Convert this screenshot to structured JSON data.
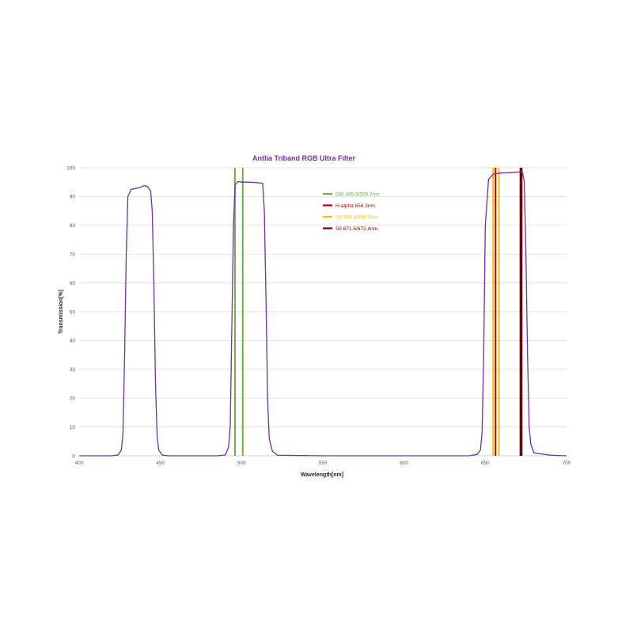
{
  "chart_data": {
    "type": "line",
    "title": "Antlia Triband RGB Ultra Filter",
    "xlabel": "Wavelength[nm]",
    "ylabel": "Transmission[%]",
    "xlim": [
      400,
      700
    ],
    "ylim": [
      0,
      100
    ],
    "x_ticks": [
      400,
      450,
      500,
      550,
      600,
      650,
      700
    ],
    "y_ticks": [
      0,
      10,
      20,
      30,
      40,
      50,
      60,
      70,
      80,
      90,
      100
    ],
    "grid": "horizontal",
    "legend_position": "top-center",
    "colors": {
      "curve": "#7030a0",
      "title": "#7030a0",
      "oiii": "#70ad47",
      "h_alpha": "#c00000",
      "nii": "#ffc000",
      "sii": "#7b0000"
    },
    "series": [
      {
        "x": [
          400,
          420,
          424,
          426,
          427,
          428,
          429,
          430,
          432,
          435,
          438,
          440,
          442,
          444,
          445,
          446,
          447,
          448,
          449,
          451,
          455,
          470,
          485,
          490,
          492,
          493,
          494,
          495,
          496,
          498,
          500,
          505,
          510,
          513,
          514,
          515,
          516,
          517,
          519,
          522,
          550,
          600,
          640,
          645,
          647,
          648,
          649,
          650,
          652,
          655,
          660,
          665,
          670,
          672,
          673,
          674,
          675,
          676,
          677,
          678,
          680,
          690,
          700
        ],
        "y": [
          0,
          0,
          0.3,
          2,
          8,
          35,
          70,
          90,
          92.5,
          92.8,
          93.3,
          93.8,
          93.5,
          92,
          85,
          60,
          25,
          7,
          2,
          0.3,
          0,
          0,
          0,
          0.3,
          3,
          10,
          45,
          80,
          94,
          95.2,
          95,
          95,
          94.8,
          94.6,
          85,
          55,
          20,
          6,
          1.5,
          0.2,
          0,
          0,
          0,
          0.5,
          2,
          8,
          35,
          80,
          96,
          97.8,
          98.2,
          98.3,
          98.5,
          98.6,
          98.3,
          95,
          70,
          35,
          10,
          4,
          1,
          0.2,
          0
        ]
      }
    ],
    "reference_lines": [
      {
        "x": 495.9,
        "color": "#70ad47"
      },
      {
        "x": 500.7,
        "color": "#70ad47"
      },
      {
        "x": 656.3,
        "color": "#c00000"
      },
      {
        "x": 654.8,
        "color": "#ffc000"
      },
      {
        "x": 658.3,
        "color": "#ffc000"
      },
      {
        "x": 671.6,
        "color": "#7b0000"
      },
      {
        "x": 672.4,
        "color": "#7b0000"
      }
    ],
    "legend": [
      {
        "label": "OIII 495.9/500.7nm",
        "color": "#70ad47"
      },
      {
        "label": "H-alpha 656.3nm",
        "color": "#c00000"
      },
      {
        "label": "NII 654.8/658.3nm",
        "color": "#ffc000"
      },
      {
        "label": "SII 671.6/672.4nm",
        "color": "#7b0000"
      }
    ]
  }
}
